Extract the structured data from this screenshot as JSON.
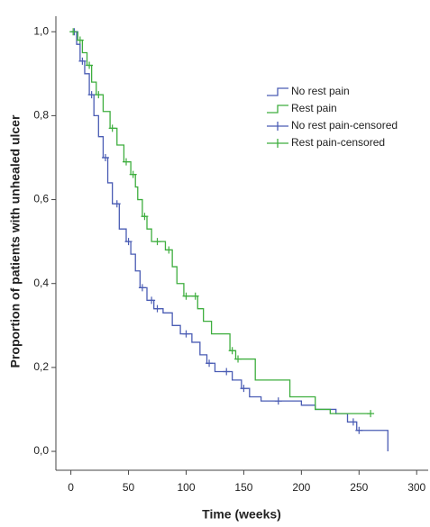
{
  "chart_data": {
    "type": "line",
    "xlabel": "Time (weeks)",
    "ylabel": "Proportion of patients with unhealed ulcer",
    "xlim": [
      -13,
      310
    ],
    "ylim": [
      -0.045,
      1.037
    ],
    "xticks": [
      0,
      50,
      100,
      150,
      200,
      250,
      300
    ],
    "yticks": [
      {
        "value": 0.0,
        "label": "0,0"
      },
      {
        "value": 0.2,
        "label": "0,2"
      },
      {
        "value": 0.4,
        "label": "0,4"
      },
      {
        "value": 0.6,
        "label": "0,6"
      },
      {
        "value": 0.8,
        "label": "0,8"
      },
      {
        "value": 1.0,
        "label": "1,0"
      }
    ],
    "legend": "upper right",
    "series": [
      {
        "name": "No rest pain",
        "color": "#4a5cb4",
        "style": "step",
        "x": [
          0,
          5,
          8,
          12,
          16,
          20,
          24,
          28,
          32,
          36,
          42,
          48,
          52,
          56,
          60,
          66,
          72,
          80,
          88,
          95,
          105,
          112,
          118,
          125,
          140,
          148,
          155,
          165,
          200,
          212,
          230,
          240,
          248,
          275
        ],
        "values": [
          1.0,
          0.97,
          0.93,
          0.9,
          0.85,
          0.8,
          0.75,
          0.7,
          0.64,
          0.59,
          0.53,
          0.5,
          0.47,
          0.43,
          0.39,
          0.36,
          0.34,
          0.33,
          0.3,
          0.28,
          0.26,
          0.23,
          0.21,
          0.19,
          0.17,
          0.15,
          0.13,
          0.12,
          0.11,
          0.1,
          0.09,
          0.07,
          0.05,
          0.0
        ]
      },
      {
        "name": "Rest pain",
        "color": "#3eae3e",
        "style": "step",
        "x": [
          0,
          6,
          10,
          14,
          18,
          22,
          28,
          34,
          40,
          46,
          52,
          56,
          58,
          62,
          66,
          70,
          82,
          88,
          92,
          98,
          110,
          115,
          122,
          138,
          143,
          160,
          190,
          212,
          225,
          260
        ],
        "values": [
          1.0,
          0.98,
          0.95,
          0.92,
          0.88,
          0.85,
          0.81,
          0.77,
          0.73,
          0.69,
          0.66,
          0.63,
          0.6,
          0.56,
          0.53,
          0.5,
          0.48,
          0.44,
          0.4,
          0.37,
          0.34,
          0.31,
          0.28,
          0.24,
          0.22,
          0.17,
          0.13,
          0.1,
          0.09,
          0.09
        ]
      },
      {
        "name": "No rest pain-censored",
        "color": "#4a5cb4",
        "style": "plus",
        "x": [
          3,
          10,
          18,
          30,
          40,
          50,
          62,
          70,
          75,
          100,
          120,
          135,
          150,
          180,
          245,
          250
        ],
        "values": [
          1.0,
          0.93,
          0.85,
          0.7,
          0.59,
          0.5,
          0.39,
          0.36,
          0.34,
          0.28,
          0.21,
          0.19,
          0.15,
          0.12,
          0.07,
          0.05
        ]
      },
      {
        "name": "Rest pain-censored",
        "color": "#3eae3e",
        "style": "plus",
        "x": [
          2,
          8,
          16,
          24,
          36,
          48,
          54,
          64,
          75,
          85,
          100,
          108,
          140,
          145,
          260
        ],
        "values": [
          1.0,
          0.98,
          0.92,
          0.85,
          0.77,
          0.69,
          0.66,
          0.56,
          0.5,
          0.48,
          0.37,
          0.37,
          0.24,
          0.22,
          0.09
        ]
      }
    ]
  }
}
